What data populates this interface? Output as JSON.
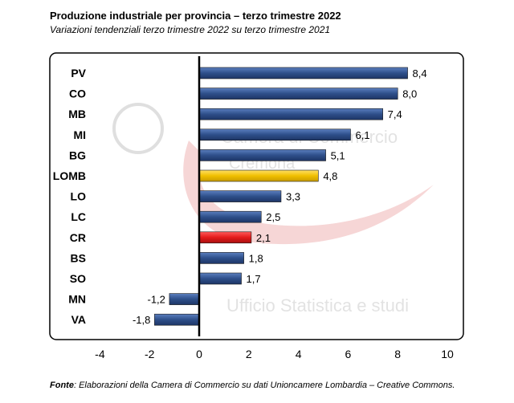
{
  "title": "Produzione industriale per provincia – terzo trimestre 2022",
  "subtitle": "Variazioni tendenziali terzo trimestre 2022 su terzo trimestre 2021",
  "source_label": "Fonte",
  "source_text": ": Elaborazioni della Camera di Commercio su dati Unioncamere Lombardia – Creative Commons.",
  "watermark": {
    "line1": "Camera di Commercio",
    "line2": "Cremona",
    "line3": "Ufficio Statistica e studi"
  },
  "colors": {
    "default_bar": "#2e4f8a",
    "lomb_bar": "#f0c000",
    "cr_bar": "#e31b1b",
    "axis": "#000000"
  },
  "chart_data": {
    "type": "bar",
    "orientation": "horizontal",
    "categories": [
      "PV",
      "CO",
      "MB",
      "MI",
      "BG",
      "LOMB",
      "LO",
      "LC",
      "CR",
      "BS",
      "SO",
      "MN",
      "VA"
    ],
    "values": [
      8.4,
      8.0,
      7.4,
      6.1,
      5.1,
      4.8,
      3.3,
      2.5,
      2.1,
      1.8,
      1.7,
      -1.2,
      -1.8
    ],
    "value_labels": [
      "8,4",
      "8,0",
      "7,4",
      "6,1",
      "5,1",
      "4,8",
      "3,3",
      "2,5",
      "2,1",
      "1,8",
      "1,7",
      "-1,2",
      "-1,8"
    ],
    "highlight": {
      "LOMB": "lomb_bar",
      "CR": "cr_bar"
    },
    "xlim": [
      -4,
      10
    ],
    "xticks": [
      -4,
      -2,
      0,
      2,
      4,
      6,
      8,
      10
    ],
    "xtick_labels": [
      "-4",
      "-2",
      "0",
      "2",
      "4",
      "6",
      "8",
      "10"
    ],
    "grid": false,
    "legend": "none"
  }
}
